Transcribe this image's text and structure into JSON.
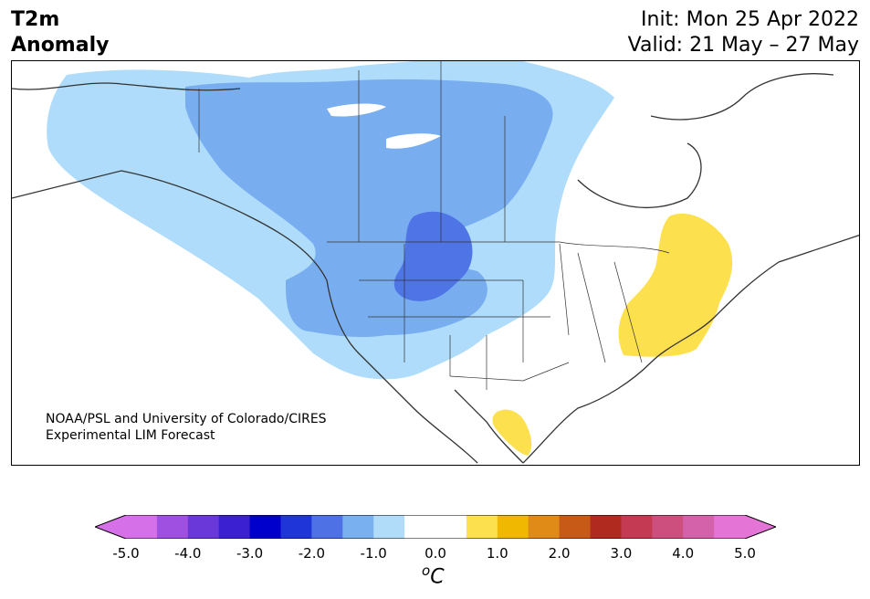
{
  "title": {
    "left_line1": "T2m",
    "left_line2": "Anomaly",
    "right_line1": "Init: Mon 25 Apr 2022",
    "right_line2": "Valid: 21 May – 27 May"
  },
  "credit": {
    "line1": "NOAA/PSL and University of Colorado/CIRES",
    "line2": "Experimental LIM Forecast"
  },
  "colorbar": {
    "unit_base": "C",
    "unit_sup": "o",
    "ticks": [
      "-5.0",
      "-4.0",
      "-3.0",
      "-2.0",
      "-1.0",
      "0.0",
      "1.0",
      "2.0",
      "3.0",
      "4.0",
      "5.0"
    ],
    "colors": [
      "#d670e8",
      "#a050e0",
      "#6a38d8",
      "#3a20d0",
      "#0000cc",
      "#2035d8",
      "#4e72e6",
      "#79b0f0",
      "#b0dcfa",
      "#ffffff",
      "#ffffff",
      "#fde04e",
      "#f0b800",
      "#e08a18",
      "#c85a18",
      "#b02a20",
      "#c43a52",
      "#cc4f7e",
      "#d462aa",
      "#e474d6"
    ],
    "under_color": "#d670e8",
    "over_color": "#e474d6"
  },
  "map_colors": {
    "anom_m05": "#aedcfa",
    "anom_m10": "#78aef0",
    "anom_m15": "#4f74e6",
    "anom_p05": "#fde04e",
    "lakes": "#ffffff",
    "coast": "#333333"
  }
}
